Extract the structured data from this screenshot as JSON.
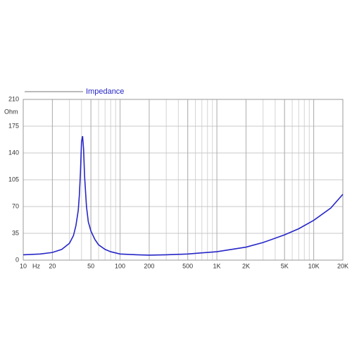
{
  "chart_data": {
    "type": "line",
    "xscale": "log",
    "xlabel": "Hz",
    "ylabel": "Ohm",
    "legend": "top-left",
    "grid": true,
    "xlim": [
      10,
      20000
    ],
    "ylim": [
      0,
      210
    ],
    "yticks": [
      0,
      35,
      70,
      105,
      140,
      175,
      210
    ],
    "xticks": [
      10,
      20,
      50,
      100,
      200,
      500,
      {
        "value": 1000,
        "label": "1K"
      },
      {
        "value": 2000,
        "label": "2K"
      },
      {
        "value": 5000,
        "label": "5K"
      },
      {
        "value": 10000,
        "label": "10K"
      },
      {
        "value": 20000,
        "label": "20K"
      }
    ],
    "x": [
      10,
      15,
      20,
      25,
      30,
      33,
      35,
      37,
      38,
      39,
      40,
      41,
      42,
      43,
      45,
      47,
      50,
      55,
      60,
      70,
      80,
      100,
      150,
      200,
      300,
      500,
      700,
      1000,
      2000,
      3000,
      5000,
      7000,
      10000,
      15000,
      20000
    ],
    "series": [
      {
        "name": "Impedance",
        "color": "#2626c8",
        "values": [
          7,
          8,
          10,
          14,
          22,
          32,
          45,
          65,
          85,
          115,
          155,
          162,
          145,
          110,
          70,
          50,
          38,
          27,
          20,
          14,
          11,
          8,
          7,
          6.5,
          7,
          8,
          9.5,
          11,
          17,
          23,
          33,
          41,
          52,
          68,
          86
        ]
      }
    ]
  }
}
